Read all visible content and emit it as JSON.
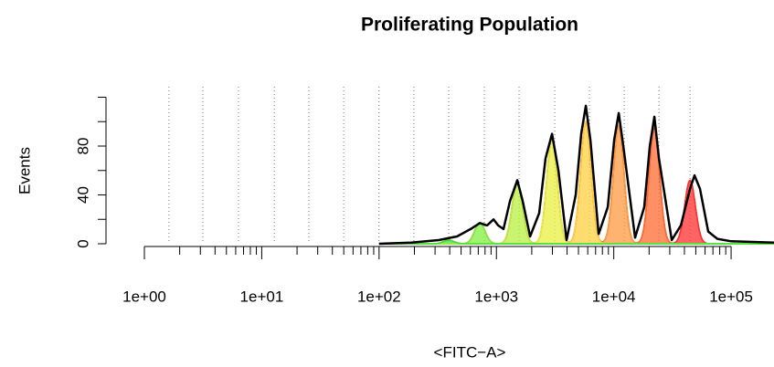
{
  "chart_data": {
    "type": "flow-histogram",
    "title": "Proliferating Population",
    "x_label": "<FITC−A>",
    "y_label": "Events",
    "log_x": true,
    "xlim": [
      1,
      232000
    ],
    "ylim": [
      0,
      120
    ],
    "xticks": [
      {
        "value": 1,
        "label": "1e+00"
      },
      {
        "value": 10,
        "label": "1e+01"
      },
      {
        "value": 100,
        "label": "1e+02"
      },
      {
        "value": 1000,
        "label": "1e+03"
      },
      {
        "value": 10000,
        "label": "1e+04"
      },
      {
        "value": 100000,
        "label": "1e+05"
      }
    ],
    "xminor_ticks": [
      2,
      3,
      4,
      5,
      6,
      7,
      8,
      9,
      20,
      30,
      40,
      50,
      60,
      70,
      80,
      90,
      200,
      300,
      400,
      500,
      600,
      700,
      800,
      900,
      2000,
      3000,
      4000,
      5000,
      6000,
      7000,
      8000,
      9000,
      20000,
      30000,
      40000,
      50000,
      60000,
      70000,
      80000,
      90000
    ],
    "yticks": [
      0,
      40,
      80
    ],
    "yminor_ticks": [
      20,
      60,
      100,
      120
    ],
    "generation_lines": [
      44640,
      24270,
      12270,
      6210,
      3140,
      1560,
      789,
      392,
      198,
      100,
      49.9,
      25.2,
      12.8,
      6.34,
      3.15,
      1.62
    ],
    "histogram": {
      "color": "#000000",
      "x": [
        100,
        188,
        322,
        461,
        603,
        722,
        833,
        945,
        1033,
        1150,
        1305,
        1506,
        1676,
        1935,
        2314,
        2623,
        2976,
        3375,
        3963,
        4742,
        5281,
        5778,
        6320,
        7430,
        8890,
        10080,
        11020,
        12060,
        15210,
        18200,
        20270,
        22180,
        24270,
        31190,
        37320,
        44640,
        48790,
        54320,
        63840,
        76360,
        100000,
        232000
      ],
      "values": [
        0,
        1,
        3,
        6,
        12,
        17,
        15,
        20,
        15,
        12,
        35,
        52,
        35,
        6,
        25,
        70,
        90,
        60,
        3,
        40,
        90,
        113,
        85,
        8,
        30,
        85,
        107,
        80,
        5,
        30,
        80,
        104,
        70,
        3,
        15,
        45,
        56,
        45,
        10,
        4,
        2,
        1
      ]
    },
    "peaks": {
      "centers": [
        44640,
        22180,
        11020,
        5778,
        2976,
        1506,
        722,
        392
      ],
      "heights": [
        52,
        95,
        97,
        100,
        87,
        50,
        17,
        3
      ],
      "colors": [
        "#ff3030",
        "#ff6a30",
        "#ff9a40",
        "#ffd040",
        "#e8f040",
        "#b8f040",
        "#80f040",
        "#40e040"
      ],
      "sd_log10": 0.045,
      "model_color": "#cc3300"
    }
  }
}
